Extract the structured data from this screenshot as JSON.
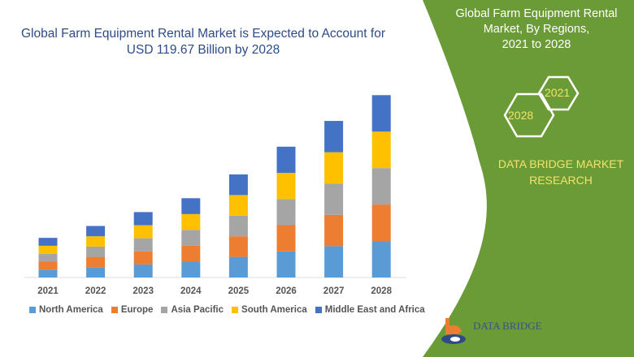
{
  "title": "Global Farm Equipment Rental Market is Expected to Account for USD 119.67 Billion by 2028",
  "side_panel": {
    "title_lines": [
      "Global Farm Equipment Rental",
      "Market, By Regions,",
      "2021 to 2028"
    ],
    "hex_labels": [
      "2021",
      "2028"
    ],
    "brand_lines": [
      "DATA BRIDGE MARKET",
      "RESEARCH"
    ],
    "logo_text": "DATA BRIDGE",
    "color": "#6b9b37"
  },
  "chart_data": {
    "type": "bar",
    "stacked": true,
    "title": "Global Farm Equipment Rental Market is Expected to Account for USD 119.67 Billion by 2028",
    "xlabel": "",
    "ylabel": "",
    "categories": [
      "2021",
      "2022",
      "2023",
      "2024",
      "2025",
      "2026",
      "2027",
      "2028"
    ],
    "series": [
      {
        "name": "North America",
        "color": "#5b9bd5",
        "values": [
          10,
          13,
          16.5,
          20,
          26,
          33,
          39.5,
          46
        ]
      },
      {
        "name": "Europe",
        "color": "#ed7d31",
        "values": [
          10,
          13,
          16.5,
          20,
          26,
          33,
          39.5,
          46
        ]
      },
      {
        "name": "Asia Pacific",
        "color": "#a5a5a5",
        "values": [
          10,
          13,
          16.5,
          20,
          26,
          33,
          39.5,
          46
        ]
      },
      {
        "name": "South America",
        "color": "#ffc000",
        "values": [
          10,
          13,
          16.5,
          20,
          26,
          33,
          39.5,
          46
        ]
      },
      {
        "name": "Middle East and Africa",
        "color": "#4472c4",
        "values": [
          10,
          13,
          16.5,
          20,
          26,
          33,
          39.5,
          46
        ]
      }
    ],
    "ylim": [
      0,
      235
    ],
    "grid": false,
    "y_axis_shown": false,
    "legend_position": "bottom"
  }
}
